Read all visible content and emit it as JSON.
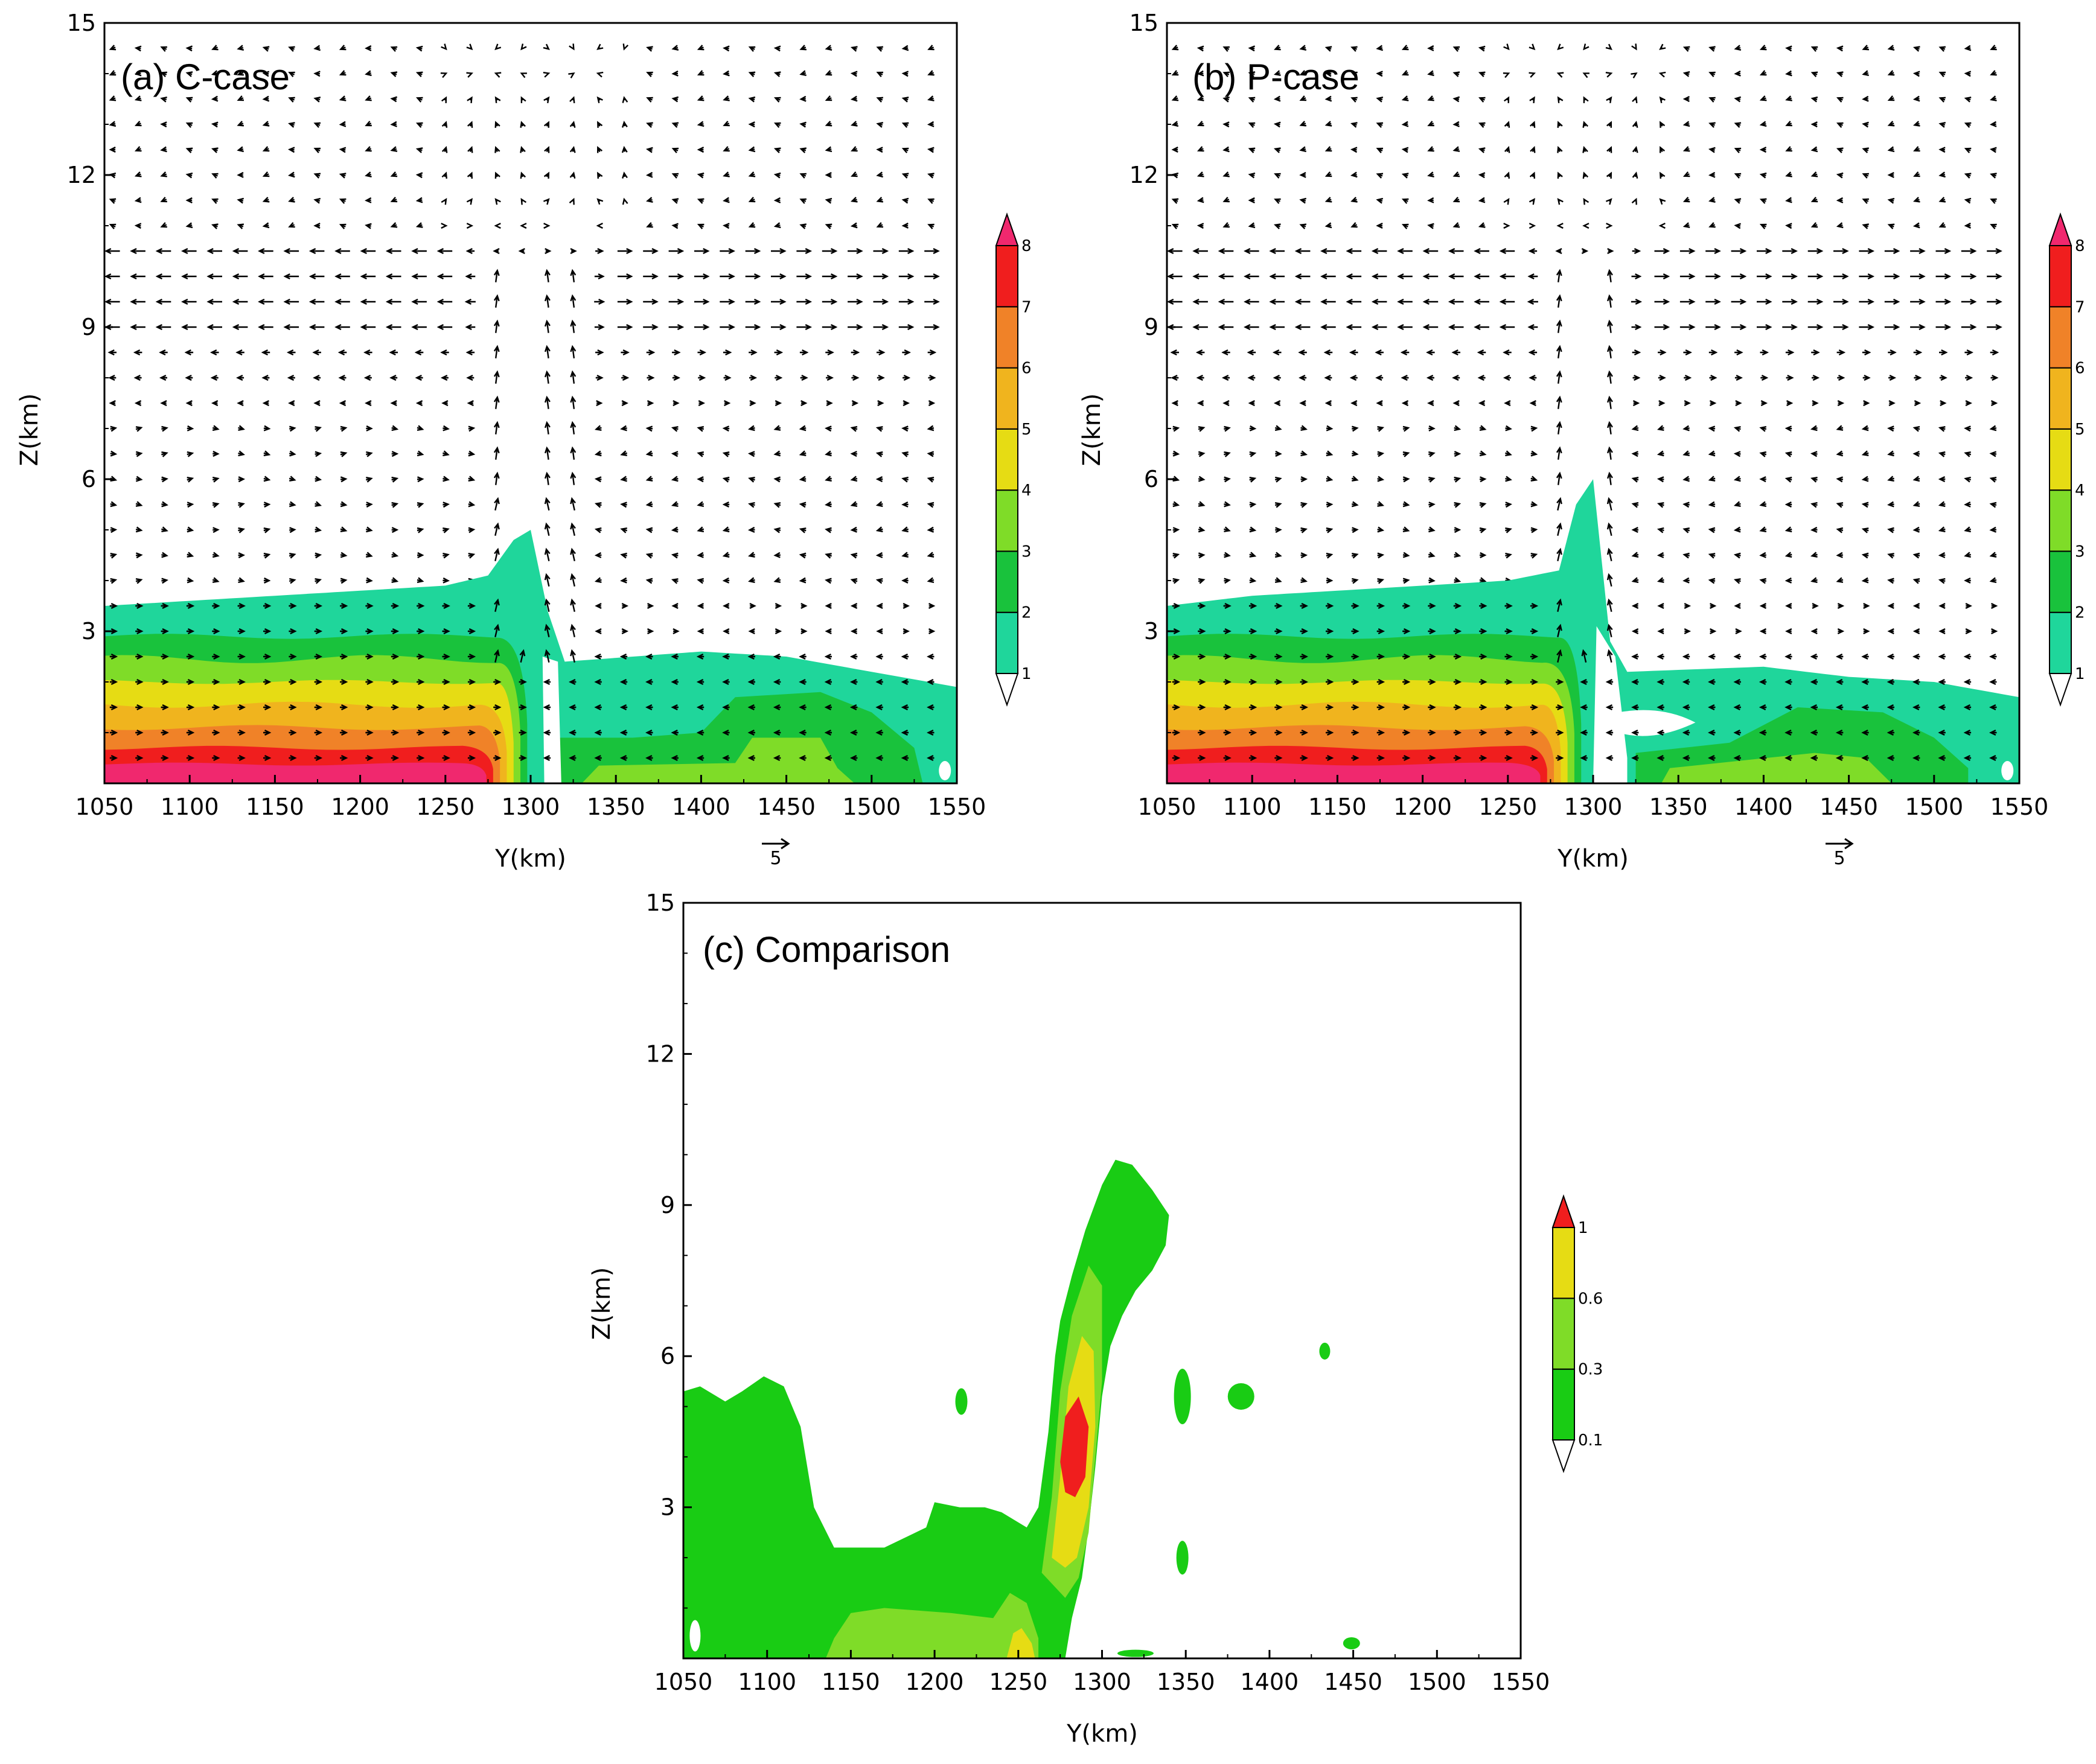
{
  "chart_data": [
    {
      "type": "contour-vector",
      "title": "(a) C-case",
      "xlabel": "Y(km)",
      "ylabel": "Z(km)",
      "xlim": [
        1050,
        1550
      ],
      "ylim": [
        0,
        15
      ],
      "xticks": [
        "1050",
        "1100",
        "1150",
        "1200",
        "1250",
        "1300",
        "1350",
        "1400",
        "1450",
        "1500",
        "1550"
      ],
      "yticks": [
        "3",
        "6",
        "9",
        "12",
        "15"
      ],
      "colorbar_levels": [
        "1",
        "2",
        "3",
        "4",
        "5",
        "6",
        "7",
        "8"
      ],
      "colorbar_colors": [
        "#1fd69b",
        "#19c23c",
        "#7fdc28",
        "#e6dc14",
        "#f0b41e",
        "#f08228",
        "#f01e1e",
        "#f0286e"
      ],
      "contour_top_profile": {
        "y": [
          1050,
          1100,
          1150,
          1200,
          1250,
          1275,
          1290,
          1300,
          1310,
          1320,
          1400,
          1450,
          1500,
          1550
        ],
        "z": [
          3.5,
          3.6,
          3.7,
          3.8,
          3.9,
          4.1,
          4.8,
          5.0,
          3.4,
          2.4,
          2.6,
          2.5,
          2.2,
          1.9
        ]
      },
      "convergence_y_km": 1300,
      "reference_vector": "5"
    },
    {
      "type": "contour-vector",
      "title": "(b) P-case",
      "xlabel": "Y(km)",
      "ylabel": "Z(km)",
      "xlim": [
        1050,
        1550
      ],
      "ylim": [
        0,
        15
      ],
      "xticks": [
        "1050",
        "1100",
        "1150",
        "1200",
        "1250",
        "1300",
        "1350",
        "1400",
        "1450",
        "1500",
        "1550"
      ],
      "yticks": [
        "3",
        "6",
        "9",
        "12",
        "15"
      ],
      "colorbar_levels": [
        "1",
        "2",
        "3",
        "4",
        "5",
        "6",
        "7",
        "8"
      ],
      "colorbar_colors": [
        "#1fd69b",
        "#19c23c",
        "#7fdc28",
        "#e6dc14",
        "#f0b41e",
        "#f08228",
        "#f01e1e",
        "#f0286e"
      ],
      "contour_top_profile": {
        "y": [
          1050,
          1100,
          1150,
          1200,
          1250,
          1280,
          1290,
          1300,
          1310,
          1320,
          1400,
          1450,
          1500,
          1550
        ],
        "z": [
          3.5,
          3.7,
          3.8,
          3.9,
          4.0,
          4.2,
          5.5,
          6.0,
          2.8,
          2.2,
          2.3,
          2.1,
          2.0,
          1.7
        ]
      },
      "convergence_y_km": 1295,
      "reference_vector": "5"
    },
    {
      "type": "contour",
      "title": "(c) Comparison",
      "xlabel": "Y(km)",
      "ylabel": "Z(km)",
      "xlim": [
        1050,
        1550
      ],
      "ylim": [
        0,
        15
      ],
      "xticks": [
        "1050",
        "1100",
        "1150",
        "1200",
        "1250",
        "1300",
        "1350",
        "1400",
        "1450",
        "1500",
        "1550"
      ],
      "yticks": [
        "3",
        "6",
        "9",
        "12",
        "15"
      ],
      "colorbar_levels": [
        "0.1",
        "0.3",
        "0.6",
        "1"
      ],
      "colorbar_colors": [
        "#19cc14",
        "#7fdc28",
        "#e6dc14",
        "#f01e1e"
      ],
      "max_region": {
        "y": [
          1275,
          1295
        ],
        "z": [
          3.4,
          5.1
        ]
      }
    }
  ]
}
